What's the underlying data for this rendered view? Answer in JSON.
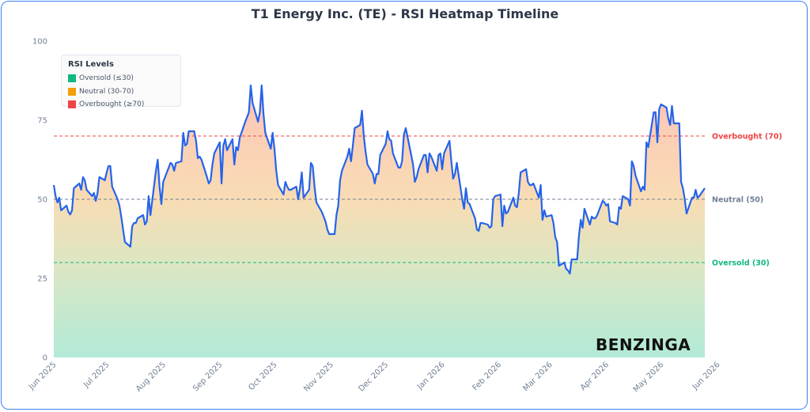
{
  "title": "T1 Energy Inc. (TE) - RSI Heatmap Timeline",
  "legend": {
    "title": "RSI Levels",
    "items": [
      {
        "label": "Oversold (≤30)",
        "color": "#10b981"
      },
      {
        "label": "Neutral (30-70)",
        "color": "#f59e0b"
      },
      {
        "label": "Overbought (≥70)",
        "color": "#ef4444"
      }
    ]
  },
  "logo": "BENZINGA",
  "chart_data": {
    "type": "line",
    "title": "T1 Energy Inc. (TE) - RSI Heatmap Timeline",
    "xlabel": "",
    "ylabel": "",
    "ylim": [
      0,
      100
    ],
    "yticks": [
      0,
      25,
      50,
      75,
      100
    ],
    "x_start": "2025-06-02",
    "xtick_labels": [
      {
        "date": "2025-06-01",
        "label": "Jun 2025"
      },
      {
        "date": "2025-07-01",
        "label": "Jul 2025"
      },
      {
        "date": "2025-08-01",
        "label": "Aug 2025"
      },
      {
        "date": "2025-09-01",
        "label": "Sep 2025"
      },
      {
        "date": "2025-10-01",
        "label": "Oct 2025"
      },
      {
        "date": "2025-11-01",
        "label": "Nov 2025"
      },
      {
        "date": "2025-12-01",
        "label": "Dec 2025"
      },
      {
        "date": "2026-01-01",
        "label": "Jan 2026"
      },
      {
        "date": "2026-02-01",
        "label": "Feb 2026"
      },
      {
        "date": "2026-03-01",
        "label": "Mar 2026"
      },
      {
        "date": "2026-04-01",
        "label": "Apr 2026"
      },
      {
        "date": "2026-05-01",
        "label": "May 2026"
      },
      {
        "date": "2026-06-01",
        "label": "Jun 2026"
      }
    ],
    "reference_lines": [
      {
        "value": 70,
        "label": "Overbought (70)",
        "color": "#ef4444"
      },
      {
        "value": 50,
        "label": "Neutral (50)",
        "color": "#718096"
      },
      {
        "value": 30,
        "label": "Oversold (30)",
        "color": "#10b981"
      }
    ],
    "series": [
      {
        "color": "#2563eb",
        "values": [
          54.5,
          51,
          49,
          50.5,
          46.5,
          48,
          46,
          45.2,
          46.5,
          53.5,
          55,
          53,
          57,
          56,
          53,
          51,
          52,
          49.5,
          52,
          57,
          56,
          58.5,
          60.5,
          60.5,
          54,
          50,
          48,
          44.5,
          40.5,
          36.5,
          35,
          41.5,
          42.5,
          42.5,
          44,
          45,
          42,
          43,
          51,
          45,
          59,
          62.5,
          54,
          48.5,
          55.5,
          60,
          61.5,
          61,
          59,
          61.5,
          62,
          71,
          67,
          67.5,
          71.5,
          71.5,
          68.5,
          63,
          63.5,
          62.5,
          57,
          55,
          56,
          61,
          64.5,
          68,
          55,
          67,
          69,
          65.5,
          69,
          61,
          66.5,
          65.5,
          69.5,
          74.5,
          76,
          77.5,
          86,
          80.5,
          74.5,
          77.5,
          86,
          77,
          71,
          66,
          71,
          66,
          59,
          54.5,
          51.5,
          55.5,
          54,
          53,
          53,
          54,
          50,
          53.5,
          58.5,
          50.5,
          53,
          61.5,
          60.5,
          54,
          49,
          46,
          44.5,
          43,
          40.5,
          39,
          39,
          45,
          48,
          56,
          59,
          63.5,
          66,
          62,
          67,
          72.5,
          73.5,
          78,
          70,
          65,
          61,
          58,
          55,
          58,
          58,
          64,
          67.5,
          71.5,
          69,
          68.5,
          64.5,
          60,
          60,
          62,
          70.5,
          72.5,
          64,
          61,
          55.5,
          57,
          59.5,
          64,
          64,
          58.5,
          64.5,
          63.5,
          59,
          64,
          64.5,
          59.5,
          64.5,
          68.5,
          62,
          56.5,
          58,
          61.5,
          50,
          47,
          53.5,
          49,
          48.5,
          44,
          40.5,
          40,
          42.5,
          42.5,
          42,
          41,
          41.5,
          50,
          51,
          51.5,
          41.5,
          48,
          45.5,
          46,
          50.5,
          48,
          47.5,
          52,
          58.5,
          59.5,
          55.5,
          54.5,
          54.5,
          55,
          50.5,
          54.5,
          43.5,
          46.5,
          44.5,
          45,
          42.5,
          38,
          36.5,
          29,
          30,
          28,
          27.5,
          26.5,
          31,
          31,
          38.5,
          43.5,
          41,
          47,
          42,
          44.5,
          44,
          44,
          45,
          49.5,
          49,
          48,
          48.5,
          43,
          42.5,
          42,
          47.5,
          47,
          51,
          50,
          48,
          62,
          60.5,
          57.5,
          52.5,
          54,
          53,
          68,
          66.5,
          77.5,
          77.5,
          68,
          78.5,
          80,
          79,
          75.5,
          73.5,
          79.5,
          74,
          74,
          55.5,
          53.5,
          50,
          45.5,
          50.5,
          50.5,
          53,
          50.5,
          51,
          53.5
        ]
      }
    ],
    "zones": {
      "oversold_color": "#10b981",
      "neutral_color": "#f59e0b",
      "overbought_color": "#ef4444"
    }
  }
}
